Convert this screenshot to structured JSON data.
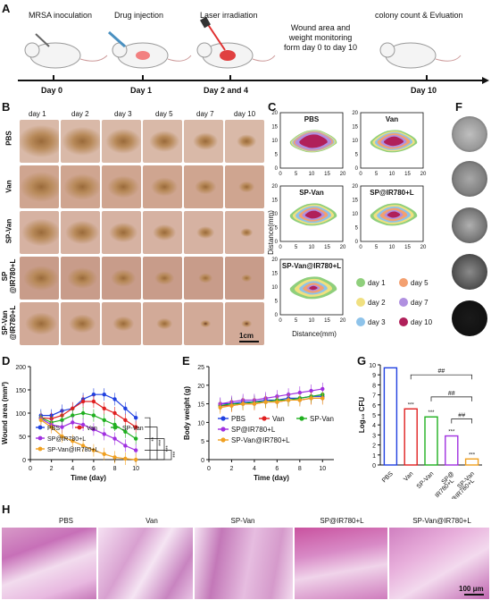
{
  "panels": {
    "A": "A",
    "B": "B",
    "C": "C",
    "D": "D",
    "E": "E",
    "F": "F",
    "G": "G",
    "H": "H"
  },
  "timeline": {
    "events": [
      "MRSA inoculation",
      "Drug injection",
      "Laser irradiation",
      "Wound area and\nweight monitoring\nform day 0 to day 10",
      "colony count & Evluation"
    ],
    "days": [
      "Day 0",
      "Day 1",
      "Day 2 and 4",
      "Day 10"
    ]
  },
  "photo_grid": {
    "days": [
      "day 1",
      "day 2",
      "day 3",
      "day 5",
      "day 7",
      "day 10"
    ],
    "groups": [
      "PBS",
      "Van",
      "SP-Van",
      "SP\n@IR780+L",
      "SP-Van\n@IR780+L"
    ],
    "scale": "1cm"
  },
  "contours": {
    "titles": [
      "PBS",
      "Van",
      "SP-Van",
      "SP@IR780+L",
      "SP-Van@IR780+L"
    ],
    "ylabel": "Distance(mm)",
    "xlabel": "Distance(mm)",
    "ticks": [
      "0",
      "5",
      "10",
      "15",
      "20"
    ],
    "legend": [
      "day 1",
      "day 5",
      "day 2",
      "day 7",
      "day 3",
      "day 10"
    ],
    "colors": {
      "day1": "#8fcf7c",
      "day2": "#f0e080",
      "day3": "#8ec3ea",
      "day5": "#f3a070",
      "day7": "#b090e0",
      "day10": "#b0205a"
    }
  },
  "chart_data": [
    {
      "type": "line",
      "panel": "D",
      "xlabel": "Time (day)",
      "ylabel": "Wound area (mm²)",
      "xlim": [
        0,
        11
      ],
      "ylim": [
        0,
        200
      ],
      "xticks": [
        0,
        2,
        4,
        6,
        8,
        10
      ],
      "yticks": [
        0,
        50,
        100,
        150,
        200
      ],
      "x": [
        1,
        2,
        3,
        4,
        5,
        6,
        7,
        8,
        9,
        10
      ],
      "series": [
        {
          "name": "PBS",
          "color": "#2040e0",
          "marker": "circle",
          "values": [
            95,
            95,
            105,
            110,
            130,
            140,
            140,
            130,
            110,
            90
          ]
        },
        {
          "name": "Van",
          "color": "#e02020",
          "marker": "square",
          "values": [
            90,
            88,
            95,
            110,
            125,
            125,
            110,
            100,
            85,
            70
          ]
        },
        {
          "name": "SP-Van",
          "color": "#20b020",
          "marker": "triangle",
          "values": [
            90,
            80,
            85,
            95,
            100,
            95,
            85,
            75,
            60,
            45
          ]
        },
        {
          "name": "SP@IR780+L",
          "color": "#a030e0",
          "marker": "tri-down",
          "values": [
            88,
            75,
            70,
            80,
            75,
            65,
            55,
            45,
            30,
            20
          ]
        },
        {
          "name": "SP-Van@IR780+L",
          "color": "#f0a020",
          "marker": "diamond",
          "values": [
            85,
            70,
            50,
            40,
            30,
            20,
            12,
            5,
            2,
            0
          ]
        }
      ],
      "significance": [
        "**",
        "***",
        "***",
        "***"
      ]
    },
    {
      "type": "line",
      "panel": "E",
      "xlabel": "Time (day)",
      "ylabel": "Body weight (g)",
      "xlim": [
        0,
        11
      ],
      "ylim": [
        0,
        25
      ],
      "xticks": [
        0,
        2,
        4,
        6,
        8,
        10
      ],
      "yticks": [
        0,
        5,
        10,
        15,
        20,
        25
      ],
      "x": [
        1,
        2,
        3,
        4,
        5,
        6,
        7,
        8,
        9,
        10
      ],
      "series": [
        {
          "name": "PBS",
          "color": "#2040e0",
          "values": [
            15,
            15,
            15.5,
            15.5,
            16,
            16,
            16.5,
            16.5,
            17,
            17
          ]
        },
        {
          "name": "Van",
          "color": "#e02020",
          "values": [
            14.5,
            14.5,
            15,
            15,
            15.5,
            15.5,
            16,
            16,
            16.5,
            16.5
          ]
        },
        {
          "name": "SP-Van",
          "color": "#20b020",
          "values": [
            14.5,
            15,
            15,
            15.5,
            15.5,
            16,
            16,
            16.5,
            17,
            17.5
          ]
        },
        {
          "name": "SP@IR780+L",
          "color": "#a030e0",
          "values": [
            15,
            15.5,
            16,
            16,
            16.5,
            17,
            17.5,
            18,
            18.5,
            19
          ]
        },
        {
          "name": "SP-Van@IR780+L",
          "color": "#f0a020",
          "values": [
            14,
            14.5,
            15,
            15,
            15.5,
            15.5,
            16,
            16,
            16.5,
            16.5
          ]
        }
      ]
    },
    {
      "type": "bar",
      "panel": "G",
      "ylabel": "Log₁₀ CFU",
      "ylim": [
        0,
        10
      ],
      "yticks": [
        0,
        1,
        2,
        3,
        4,
        5,
        6,
        7,
        8,
        9,
        10
      ],
      "categories": [
        "PBS",
        "Van",
        "SP-Van",
        "SP@\nIR780+L",
        "SP-Van\n@IR780+L"
      ],
      "values": [
        9.7,
        5.6,
        4.8,
        2.9,
        0.6
      ],
      "colors": [
        "#2040e0",
        "#e02020",
        "#20b020",
        "#a030e0",
        "#f0a020"
      ],
      "stars": [
        "",
        "***",
        "***",
        "***",
        "***"
      ],
      "comparisons": [
        "##",
        "##",
        "##"
      ]
    }
  ],
  "histology": {
    "titles": [
      "PBS",
      "Van",
      "SP-Van",
      "SP@IR780+L",
      "SP-Van@IR780+L"
    ],
    "scale": "100 μm"
  }
}
